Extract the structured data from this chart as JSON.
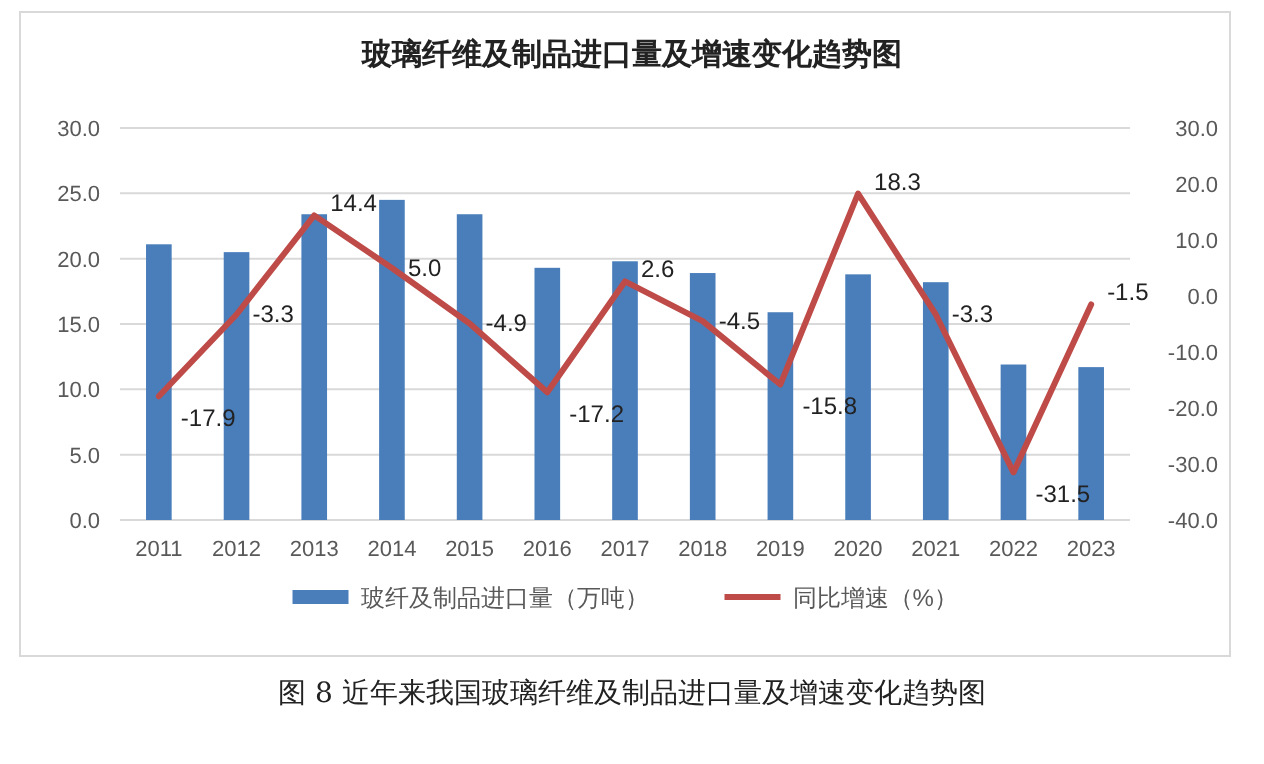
{
  "chart_data": {
    "type": "bar",
    "title": "玻璃纤维及制品进口量及增速变化趋势图",
    "categories": [
      "2011",
      "2012",
      "2013",
      "2014",
      "2015",
      "2016",
      "2017",
      "2018",
      "2019",
      "2020",
      "2021",
      "2022",
      "2023"
    ],
    "series": [
      {
        "name": "玻纤及制品进口量（万吨）",
        "color": "#4a7ebb",
        "values": [
          21.1,
          20.5,
          23.4,
          24.5,
          23.4,
          19.3,
          19.8,
          18.9,
          15.9,
          18.8,
          18.2,
          11.9,
          11.7
        ]
      },
      {
        "name": "同比增速（%）",
        "type": "line",
        "axis": "y2",
        "color": "#be4b48",
        "values": [
          -17.9,
          -3.3,
          14.4,
          5.0,
          -4.9,
          -17.2,
          2.6,
          -4.5,
          -15.8,
          18.3,
          -3.3,
          -31.5,
          -1.5
        ],
        "value_labels": [
          "-17.9",
          "-3.3",
          "14.4",
          "5.0",
          "-4.9",
          "-17.2",
          "2.6",
          "-4.5",
          "-15.8",
          "18.3",
          "-3.3",
          "-31.5",
          "-1.5"
        ]
      }
    ],
    "ylim": [
      0,
      30
    ],
    "yticks": [
      {
        "value": 0,
        "label": "0.0"
      },
      {
        "value": 5,
        "label": "5.0"
      },
      {
        "value": 10,
        "label": "10.0"
      },
      {
        "value": 15,
        "label": "15.0"
      },
      {
        "value": 20,
        "label": "20.0"
      },
      {
        "value": 25,
        "label": "25.0"
      },
      {
        "value": 30,
        "label": "30.0"
      }
    ],
    "y2lim": [
      -40,
      30
    ],
    "y2ticks": [
      {
        "value": -40,
        "label": "-40.0"
      },
      {
        "value": -30,
        "label": "-30.0"
      },
      {
        "value": -20,
        "label": "-20.0"
      },
      {
        "value": -10,
        "label": "-10.0"
      },
      {
        "value": 0,
        "label": "0.0"
      },
      {
        "value": 10,
        "label": "10.0"
      },
      {
        "value": 20,
        "label": "20.0"
      },
      {
        "value": 30,
        "label": "30.0"
      }
    ],
    "grid": "y",
    "legend": "bottom",
    "annotations": [
      "图 8 近年来我国玻璃纤维及制品进口量及增速变化趋势图"
    ]
  }
}
